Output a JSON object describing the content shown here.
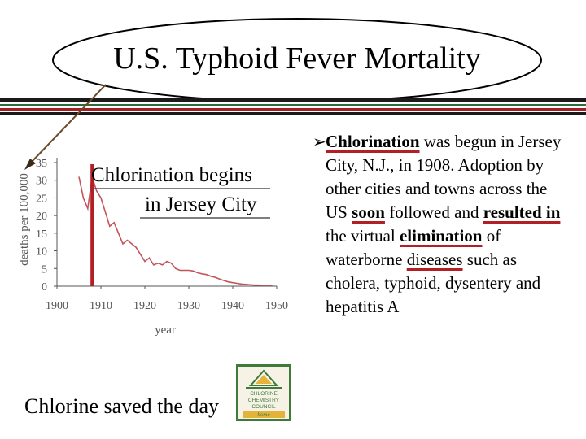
{
  "slide": {
    "title": "U.S. Typhoid Fever Mortality",
    "footer": "Chlorine saved the day",
    "annotation_line1": "Chlorination begins",
    "annotation_line2": "in Jersey City"
  },
  "bullet": {
    "seg1": "Chlorination",
    "seg2": " was begun in Jersey City, N.J., in 1908. Adoption by other cities and towns across the US ",
    "seg3": "soon",
    "seg4": " followed and ",
    "seg5": "resulted in",
    "seg6": " the virtual ",
    "seg7": "elimination",
    "seg8": " of waterborne ",
    "seg9": "diseases",
    "seg10": " such as cholera, typhoid, dysentery and hepatitis A"
  },
  "logo": {
    "line1": "CHLORINE",
    "line2": "CHEMISTRY",
    "line3": "COUNCIL",
    "line4": "home"
  },
  "colors": {
    "accent_red": "#b21f24",
    "band_dark": "#1a1a1a",
    "band_green": "#2e6b3a",
    "band_red": "#a31f24",
    "series_line": "#c0565c",
    "logo_green": "#3f7a3a",
    "logo_yellow": "#e5b23a"
  },
  "chart_data": {
    "type": "line",
    "title": "",
    "xlabel": "year",
    "ylabel": "deaths per 100,000",
    "xlim": [
      1900,
      1950
    ],
    "ylim": [
      0,
      35
    ],
    "xticks": [
      1900,
      1910,
      1920,
      1930,
      1940,
      1950
    ],
    "yticks": [
      0,
      5,
      10,
      15,
      20,
      25,
      30,
      35
    ],
    "grid": false,
    "marker_year": 1908,
    "series": [
      {
        "values": [
          [
            1905,
            31
          ],
          [
            1906,
            25
          ],
          [
            1907,
            22
          ],
          [
            1908,
            31
          ],
          [
            1909,
            27
          ],
          [
            1910,
            25
          ],
          [
            1911,
            21
          ],
          [
            1912,
            17
          ],
          [
            1913,
            18
          ],
          [
            1914,
            15
          ],
          [
            1915,
            12
          ],
          [
            1916,
            13
          ],
          [
            1917,
            12
          ],
          [
            1918,
            11
          ],
          [
            1919,
            9
          ],
          [
            1920,
            7
          ],
          [
            1921,
            8
          ],
          [
            1922,
            6
          ],
          [
            1923,
            6.5
          ],
          [
            1924,
            6
          ],
          [
            1925,
            7
          ],
          [
            1926,
            6.5
          ],
          [
            1927,
            5
          ],
          [
            1928,
            4.5
          ],
          [
            1929,
            4.5
          ],
          [
            1930,
            4.5
          ],
          [
            1931,
            4.3
          ],
          [
            1932,
            3.8
          ],
          [
            1933,
            3.5
          ],
          [
            1934,
            3.3
          ],
          [
            1935,
            2.8
          ],
          [
            1936,
            2.5
          ],
          [
            1937,
            2
          ],
          [
            1938,
            1.6
          ],
          [
            1939,
            1.2
          ],
          [
            1940,
            1
          ],
          [
            1941,
            0.8
          ],
          [
            1942,
            0.6
          ],
          [
            1943,
            0.5
          ],
          [
            1944,
            0.4
          ],
          [
            1945,
            0.3
          ],
          [
            1946,
            0.3
          ],
          [
            1947,
            0.25
          ],
          [
            1948,
            0.25
          ],
          [
            1949,
            0.2
          ]
        ]
      }
    ]
  }
}
